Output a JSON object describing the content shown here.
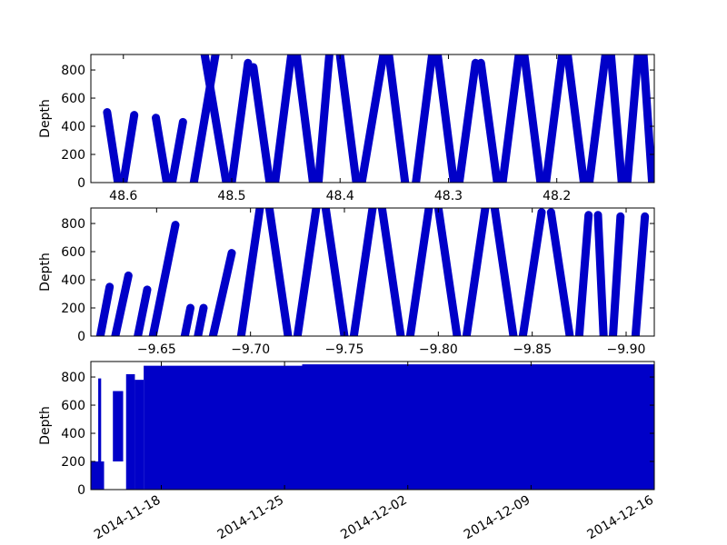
{
  "chart_data": [
    {
      "type": "scatter",
      "ylabel": "Depth",
      "xlim": [
        48.63,
        48.11
      ],
      "ylim": [
        910,
        0
      ],
      "x_ticks": [
        48.6,
        48.5,
        48.4,
        48.3,
        48.2
      ],
      "x_tick_labels": [
        "48.6",
        "48.5",
        "48.4",
        "48.3",
        "48.2"
      ],
      "y_ticks": [
        0,
        200,
        400,
        600,
        800
      ],
      "y_tick_labels": [
        "0",
        "200",
        "400",
        "600",
        "800"
      ],
      "series": [
        {
          "color": "#0000c8",
          "segments": [
            [
              48.615,
              500,
              48.605,
              0
            ],
            [
              48.6,
              0,
              48.59,
              480
            ],
            [
              48.57,
              460,
              48.56,
              0
            ],
            [
              48.555,
              0,
              48.545,
              430
            ],
            [
              48.535,
              0,
              48.515,
              910
            ],
            [
              48.525,
              910,
              48.505,
              0
            ],
            [
              48.5,
              0,
              48.485,
              850
            ],
            [
              48.48,
              820,
              48.465,
              0
            ],
            [
              48.46,
              0,
              48.445,
              910
            ],
            [
              48.44,
              910,
              48.425,
              0
            ],
            [
              48.42,
              0,
              48.41,
              900
            ],
            [
              48.4,
              900,
              48.385,
              0
            ],
            [
              48.38,
              0,
              48.36,
              910
            ],
            [
              48.355,
              910,
              48.34,
              0
            ],
            [
              48.33,
              0,
              48.315,
              910
            ],
            [
              48.31,
              910,
              48.295,
              0
            ],
            [
              48.29,
              0,
              48.275,
              850
            ],
            [
              48.27,
              850,
              48.255,
              0
            ],
            [
              48.25,
              0,
              48.235,
              910
            ],
            [
              48.23,
              910,
              48.215,
              0
            ],
            [
              48.21,
              0,
              48.195,
              910
            ],
            [
              48.19,
              910,
              48.175,
              0
            ],
            [
              48.17,
              0,
              48.155,
              910
            ],
            [
              48.15,
              910,
              48.14,
              0
            ],
            [
              48.135,
              0,
              48.125,
              910
            ],
            [
              48.12,
              910,
              48.112,
              0
            ]
          ]
        }
      ]
    },
    {
      "type": "scatter",
      "ylabel": "Depth",
      "xlim": [
        -9.615,
        -9.915
      ],
      "ylim": [
        910,
        0
      ],
      "x_ticks": [
        -9.65,
        -9.7,
        -9.75,
        -9.8,
        -9.85,
        -9.9
      ],
      "x_tick_labels": [
        "−9.65",
        "−9.70",
        "−9.75",
        "−9.80",
        "−9.85",
        "−9.90"
      ],
      "y_ticks": [
        0,
        200,
        400,
        600,
        800
      ],
      "y_tick_labels": [
        "0",
        "200",
        "400",
        "600",
        "800"
      ],
      "series": [
        {
          "color": "#0000c8",
          "segments": [
            [
              -9.62,
              0,
              -9.625,
              350
            ],
            [
              -9.628,
              0,
              -9.635,
              430
            ],
            [
              -9.64,
              0,
              -9.645,
              330
            ],
            [
              -9.648,
              0,
              -9.66,
              790
            ],
            [
              -9.665,
              0,
              -9.668,
              200
            ],
            [
              -9.672,
              0,
              -9.675,
              200
            ],
            [
              -9.68,
              0,
              -9.69,
              590
            ],
            [
              -9.695,
              0,
              -9.705,
              910
            ],
            [
              -9.71,
              910,
              -9.72,
              0
            ],
            [
              -9.725,
              0,
              -9.735,
              910
            ],
            [
              -9.74,
              910,
              -9.75,
              0
            ],
            [
              -9.755,
              0,
              -9.765,
              910
            ],
            [
              -9.77,
              910,
              -9.78,
              0
            ],
            [
              -9.785,
              0,
              -9.795,
              910
            ],
            [
              -9.8,
              910,
              -9.81,
              0
            ],
            [
              -9.815,
              0,
              -9.825,
              910
            ],
            [
              -9.83,
              910,
              -9.84,
              0
            ],
            [
              -9.845,
              0,
              -9.855,
              880
            ],
            [
              -9.86,
              880,
              -9.87,
              0
            ],
            [
              -9.875,
              0,
              -9.88,
              860
            ],
            [
              -9.885,
              860,
              -9.888,
              0
            ],
            [
              -9.893,
              0,
              -9.897,
              850
            ],
            [
              -9.905,
              0,
              -9.91,
              850
            ]
          ]
        }
      ]
    },
    {
      "type": "scatter",
      "ylabel": "Depth",
      "xlim": [
        "2014-11-14",
        "2014-12-16"
      ],
      "ylim": [
        910,
        0
      ],
      "x_ticks": [
        "2014-11-18",
        "2014-11-25",
        "2014-12-02",
        "2014-12-09",
        "2014-12-16"
      ],
      "x_tick_labels": [
        "2014-11-18",
        "2014-11-25",
        "2014-12-02",
        "2014-12-09",
        "2014-12-16"
      ],
      "y_ticks": [
        0,
        200,
        400,
        600,
        800
      ],
      "y_tick_labels": [
        "0",
        "200",
        "400",
        "600",
        "800"
      ],
      "series": [
        {
          "color": "#0000c8",
          "bands": [
            [
              "2014-11-14",
              "2014-11-14T18:00",
              0,
              200
            ],
            [
              "2014-11-14T10:00",
              "2014-11-14T14:00",
              200,
              790
            ],
            [
              "2014-11-15T06:00",
              "2014-11-15T20:00",
              200,
              700
            ],
            [
              "2014-11-16",
              "2014-11-16T12:00",
              0,
              820
            ],
            [
              "2014-11-16T12:00",
              "2014-11-17",
              0,
              780
            ],
            [
              "2014-11-17",
              "2014-11-26",
              0,
              880
            ],
            [
              "2014-11-24T12:00",
              "2014-11-25T12:00",
              0,
              420
            ],
            [
              "2014-11-26",
              "2014-12-16",
              0,
              890
            ],
            [
              "2014-12-15",
              "2014-12-16",
              0,
              560
            ]
          ]
        }
      ]
    }
  ]
}
